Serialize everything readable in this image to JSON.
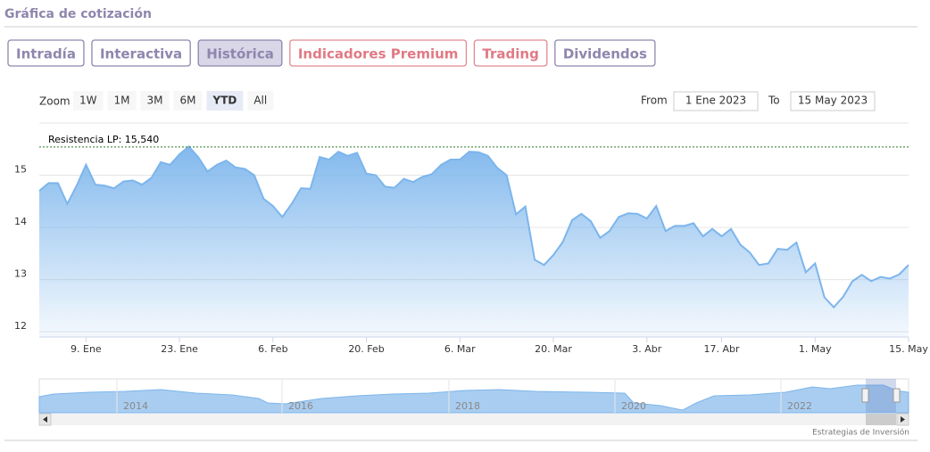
{
  "header": {
    "title": "Gráfica de cotización"
  },
  "tabs": [
    "Intradía",
    "Interactiva",
    "Histórica",
    "Indicadores Premium",
    "Trading",
    "Dividendos"
  ],
  "zoom": {
    "label": "Zoom",
    "options": [
      "1W",
      "1M",
      "3M",
      "6M",
      "YTD",
      "All"
    ],
    "active": "YTD"
  },
  "range": {
    "from_label": "From",
    "from": "1 Ene 2023",
    "to_label": "To",
    "to": "15 May 2023"
  },
  "navigator": {
    "labels": [
      "2014",
      "2016",
      "2018",
      "2020",
      "2022"
    ]
  },
  "credits": "Estrategias de Inversión",
  "chart_data": {
    "type": "area",
    "color": "#7cb5ec",
    "grid": true,
    "categories": [
      "2023-01-02",
      "2023-01-03",
      "2023-01-04",
      "2023-01-05",
      "2023-01-06",
      "2023-01-09",
      "2023-01-10",
      "2023-01-11",
      "2023-01-12",
      "2023-01-13",
      "2023-01-16",
      "2023-01-17",
      "2023-01-18",
      "2023-01-19",
      "2023-01-20",
      "2023-01-23",
      "2023-01-24",
      "2023-01-25",
      "2023-01-26",
      "2023-01-27",
      "2023-01-30",
      "2023-01-31",
      "2023-02-01",
      "2023-02-02",
      "2023-02-03",
      "2023-02-06",
      "2023-02-07",
      "2023-02-08",
      "2023-02-09",
      "2023-02-10",
      "2023-02-13",
      "2023-02-14",
      "2023-02-15",
      "2023-02-16",
      "2023-02-17",
      "2023-02-20",
      "2023-02-21",
      "2023-02-22",
      "2023-02-23",
      "2023-02-24",
      "2023-02-27",
      "2023-02-28",
      "2023-03-01",
      "2023-03-02",
      "2023-03-03",
      "2023-03-06",
      "2023-03-07",
      "2023-03-08",
      "2023-03-09",
      "2023-03-10",
      "2023-03-13",
      "2023-03-14",
      "2023-03-15",
      "2023-03-16",
      "2023-03-17",
      "2023-03-20",
      "2023-03-21",
      "2023-03-22",
      "2023-03-23",
      "2023-03-24",
      "2023-03-27",
      "2023-03-28",
      "2023-03-29",
      "2023-03-30",
      "2023-03-31",
      "2023-04-03",
      "2023-04-04",
      "2023-04-05",
      "2023-04-06",
      "2023-04-11",
      "2023-04-12",
      "2023-04-13",
      "2023-04-14",
      "2023-04-17",
      "2023-04-18",
      "2023-04-19",
      "2023-04-20",
      "2023-04-21",
      "2023-04-24",
      "2023-04-25",
      "2023-04-26",
      "2023-04-27",
      "2023-04-28",
      "2023-05-01",
      "2023-05-02",
      "2023-05-03",
      "2023-05-04",
      "2023-05-05",
      "2023-05-08",
      "2023-05-09",
      "2023-05-10",
      "2023-05-11",
      "2023-05-12",
      "2023-05-15"
    ],
    "values": [
      14.7,
      14.85,
      14.85,
      14.45,
      14.8,
      15.2,
      14.82,
      14.8,
      14.75,
      14.88,
      14.9,
      14.82,
      14.95,
      15.25,
      15.2,
      15.4,
      15.55,
      15.35,
      15.07,
      15.2,
      15.28,
      15.15,
      15.12,
      15.0,
      14.55,
      14.41,
      14.2,
      14.45,
      14.75,
      14.74,
      15.35,
      15.3,
      15.45,
      15.37,
      15.43,
      15.03,
      15.0,
      14.78,
      14.76,
      14.93,
      14.87,
      14.97,
      15.02,
      15.2,
      15.3,
      15.3,
      15.45,
      15.44,
      15.37,
      15.14,
      15.0,
      14.25,
      14.4,
      13.38,
      13.28,
      13.47,
      13.72,
      14.14,
      14.26,
      14.12,
      13.8,
      13.93,
      14.2,
      14.27,
      14.26,
      14.17,
      14.41,
      13.93,
      14.03,
      14.03,
      14.08,
      13.83,
      13.97,
      13.83,
      13.97,
      13.67,
      13.52,
      13.28,
      13.31,
      13.59,
      13.57,
      13.71,
      13.14,
      13.31,
      12.66,
      12.47,
      12.67,
      12.97,
      13.09,
      12.97,
      13.05,
      13.02,
      13.1,
      13.28
    ],
    "ylim": [
      11.9,
      16.0
    ],
    "yticks": [
      12,
      13,
      14,
      15
    ],
    "xticks": [
      {
        "value": "2023-01-09",
        "label": "9. Ene"
      },
      {
        "value": "2023-01-23",
        "label": "23. Ene"
      },
      {
        "value": "2023-02-06",
        "label": "6. Feb"
      },
      {
        "value": "2023-02-20",
        "label": "20. Feb"
      },
      {
        "value": "2023-03-06",
        "label": "6. Mar"
      },
      {
        "value": "2023-03-20",
        "label": "20. Mar"
      },
      {
        "value": "2023-04-03",
        "label": "3. Abr"
      },
      {
        "value": "2023-04-17",
        "label": "17. Abr"
      },
      {
        "value": "2023-05-01",
        "label": "1. May"
      },
      {
        "value": "2023-05-15",
        "label": "15. May"
      }
    ],
    "annotations": [
      {
        "text": "Resistencia LP: 15,540",
        "value": 15.54
      }
    ]
  }
}
